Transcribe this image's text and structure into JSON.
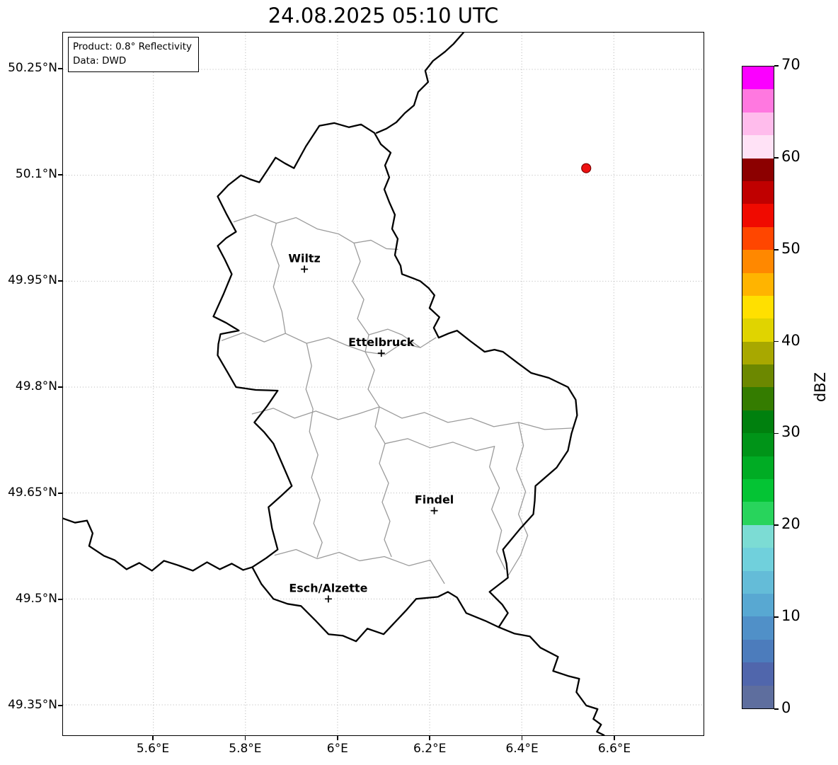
{
  "title": "24.08.2025 05:10 UTC",
  "info_box": {
    "line1": "Product: 0.8° Reflectivity",
    "line2": "Data: DWD"
  },
  "axes": {
    "lon_ticks": [
      {
        "value": 5.6,
        "label": "5.6°E"
      },
      {
        "value": 5.8,
        "label": "5.8°E"
      },
      {
        "value": 6.0,
        "label": "6°E"
      },
      {
        "value": 6.2,
        "label": "6.2°E"
      },
      {
        "value": 6.4,
        "label": "6.4°E"
      },
      {
        "value": 6.6,
        "label": "6.6°E"
      }
    ],
    "lat_ticks": [
      {
        "value": 50.25,
        "label": "50.25°N"
      },
      {
        "value": 50.1,
        "label": "50.1°N"
      },
      {
        "value": 49.95,
        "label": "49.95°N"
      },
      {
        "value": 49.8,
        "label": "49.8°N"
      },
      {
        "value": 49.65,
        "label": "49.65°N"
      },
      {
        "value": 49.5,
        "label": "49.5°N"
      },
      {
        "value": 49.35,
        "label": "49.35°N"
      }
    ]
  },
  "map": {
    "cities": [
      {
        "name": "Wiltz",
        "lon": 5.928,
        "lat": 49.967
      },
      {
        "name": "Ettelbruck",
        "lon": 6.095,
        "lat": 49.848
      },
      {
        "name": "Findel",
        "lon": 6.21,
        "lat": 49.625
      },
      {
        "name": "Esch/Alzette",
        "lon": 5.98,
        "lat": 49.5
      }
    ],
    "marker": {
      "lon": 6.54,
      "lat": 50.11,
      "color": "#ee1111",
      "edge": "#7a0000"
    }
  },
  "colorbar": {
    "label": "dBZ",
    "min": 0,
    "max": 70,
    "ticks": [
      {
        "value": 0,
        "label": "0"
      },
      {
        "value": 10,
        "label": "10"
      },
      {
        "value": 20,
        "label": "20"
      },
      {
        "value": 30,
        "label": "30"
      },
      {
        "value": 40,
        "label": "40"
      },
      {
        "value": 50,
        "label": "50"
      },
      {
        "value": 60,
        "label": "60"
      },
      {
        "value": 70,
        "label": "70"
      }
    ],
    "colors_bottom_to_top": [
      "#5e6e9e",
      "#5066ac",
      "#4c7cbc",
      "#5090c8",
      "#58a8d2",
      "#64bcd8",
      "#70d0dc",
      "#7cdcd4",
      "#28d45c",
      "#04c434",
      "#00ac24",
      "#009418",
      "#00800e",
      "#347c00",
      "#6c8800",
      "#a8a800",
      "#e0d400",
      "#ffe000",
      "#ffb400",
      "#ff8800",
      "#ff4600",
      "#f00a00",
      "#c00000",
      "#8c0000",
      "#ffe2f6",
      "#ffbcec",
      "#ff78e0",
      "#fb00ff"
    ]
  }
}
